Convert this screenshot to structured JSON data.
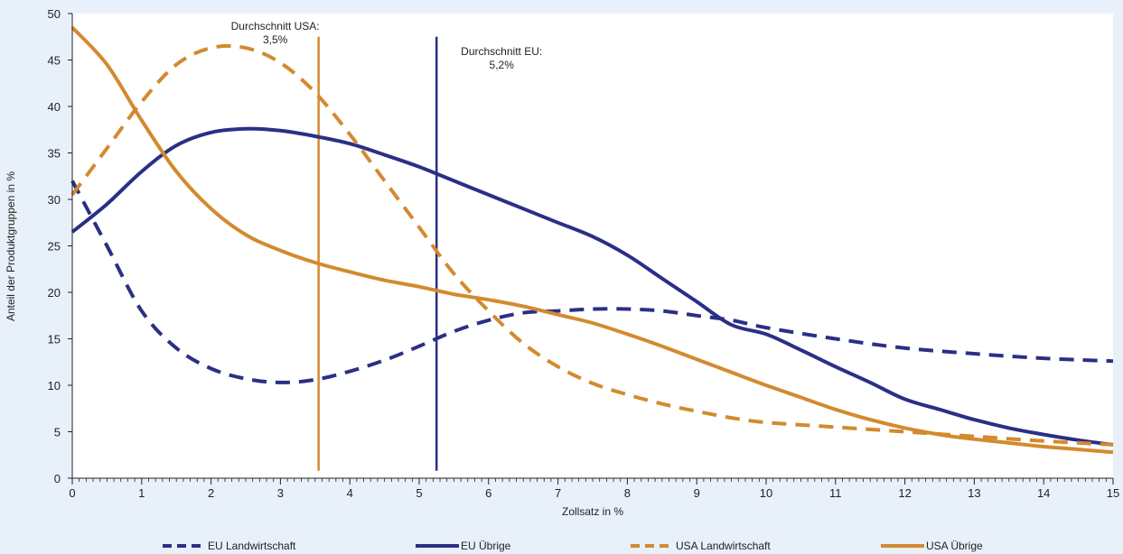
{
  "chart_data": {
    "type": "line",
    "xlabel": "Zollsatz in %",
    "ylabel": "Anteil der Produktgruppen in %",
    "xlim": [
      0,
      15
    ],
    "ylim": [
      0,
      50
    ],
    "x_ticks": [
      "0",
      "1",
      "2",
      "3",
      "4",
      "5",
      "6",
      "7",
      "8",
      "9",
      "10",
      "11",
      "12",
      "13",
      "14",
      "15"
    ],
    "y_ticks": [
      "0",
      "5",
      "10",
      "15",
      "20",
      "25",
      "30",
      "35",
      "40",
      "45",
      "50"
    ],
    "grid": false,
    "legend_position": "bottom",
    "colors": {
      "eu": "#2a2f86",
      "usa": "#d38a2e",
      "background": "#e8f0fa",
      "plot": "#ffffff"
    },
    "series": [
      {
        "name": "EU Landwirtschaft",
        "color": "#2a2f86",
        "dash": "dashed",
        "x": [
          0,
          0.5,
          1,
          1.5,
          2,
          2.5,
          3,
          3.5,
          4,
          4.5,
          5,
          5.5,
          6,
          6.5,
          7,
          7.5,
          8,
          8.5,
          9,
          9.5,
          10,
          11,
          12,
          13,
          14,
          15
        ],
        "y": [
          32,
          25,
          18,
          14,
          11.8,
          10.7,
          10.3,
          10.6,
          11.5,
          12.7,
          14.2,
          15.8,
          17,
          17.8,
          18,
          18.2,
          18.2,
          18,
          17.5,
          17,
          16.2,
          15,
          14,
          13.4,
          12.9,
          12.6
        ]
      },
      {
        "name": "EU Übrige",
        "color": "#2a2f86",
        "dash": "solid",
        "x": [
          0,
          0.5,
          1,
          1.5,
          2,
          2.5,
          3,
          3.5,
          4,
          4.5,
          5,
          5.5,
          6,
          6.5,
          7,
          7.5,
          8,
          8.5,
          9,
          9.5,
          10,
          10.5,
          11,
          11.5,
          12,
          12.5,
          13,
          13.5,
          14,
          14.5,
          15
        ],
        "y": [
          26.5,
          29.5,
          33,
          35.8,
          37.2,
          37.6,
          37.4,
          36.8,
          36,
          34.8,
          33.5,
          32,
          30.5,
          29,
          27.5,
          26,
          24,
          21.5,
          19,
          16.5,
          15.5,
          13.8,
          12,
          10.3,
          8.5,
          7.4,
          6.3,
          5.4,
          4.7,
          4.1,
          3.6
        ]
      },
      {
        "name": "USA Landwirtschaft",
        "color": "#d38a2e",
        "dash": "dashed",
        "x": [
          0,
          0.5,
          1,
          1.5,
          2,
          2.5,
          3,
          3.5,
          4,
          4.5,
          5,
          5.5,
          6,
          6.5,
          7,
          7.5,
          8,
          8.5,
          9,
          9.5,
          10,
          11,
          12,
          13,
          14,
          15
        ],
        "y": [
          30.5,
          35.5,
          40.5,
          44.5,
          46.3,
          46.3,
          44.7,
          41.5,
          37,
          32,
          27,
          22,
          18,
          14.5,
          12,
          10.2,
          9,
          8,
          7.2,
          6.5,
          6,
          5.5,
          5,
          4.5,
          4,
          3.6
        ]
      },
      {
        "name": "USA Übrige",
        "color": "#d38a2e",
        "dash": "solid",
        "x": [
          0,
          0.5,
          1,
          1.5,
          2,
          2.5,
          3,
          3.5,
          4,
          4.5,
          5,
          5.5,
          6,
          6.5,
          7,
          7.5,
          8,
          8.5,
          9,
          9.5,
          10,
          10.5,
          11,
          11.5,
          12,
          12.5,
          13,
          13.5,
          14,
          14.5,
          15
        ],
        "y": [
          48.5,
          44.5,
          38.5,
          33,
          29,
          26.2,
          24.5,
          23.2,
          22.2,
          21.3,
          20.6,
          19.8,
          19.2,
          18.5,
          17.6,
          16.7,
          15.5,
          14.2,
          12.8,
          11.4,
          10,
          8.7,
          7.4,
          6.3,
          5.4,
          4.7,
          4.2,
          3.8,
          3.4,
          3.1,
          2.8
        ]
      }
    ],
    "annotations": [
      {
        "line1": "Durchschnitt USA:",
        "line2": "3,5%",
        "x": 3.55,
        "y_top": 47.5,
        "color": "#d38a2e"
      },
      {
        "line1": "Durchschnitt EU:",
        "line2": "5,2%",
        "x": 5.25,
        "y_top": 47.5,
        "color": "#2a2f86"
      }
    ]
  }
}
